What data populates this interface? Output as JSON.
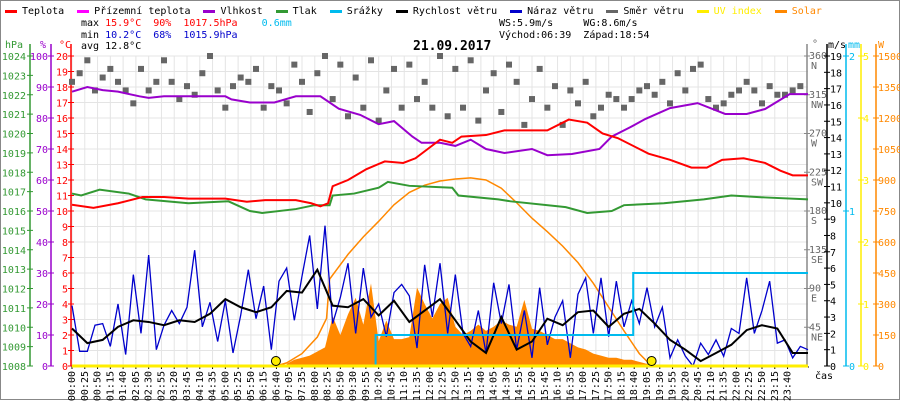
{
  "legend": [
    {
      "label": "Teplota",
      "color": "#ff0000"
    },
    {
      "label": "Přízemní teplota",
      "color": "#ff00ff"
    },
    {
      "label": "Vlhkost",
      "color": "#9900cc"
    },
    {
      "label": "Tlak",
      "color": "#339933"
    },
    {
      "label": "Srážky",
      "color": "#00bbee"
    },
    {
      "label": "Rychlost větru",
      "color": "#000000"
    },
    {
      "label": "Náraz větru",
      "color": "#0000cc"
    },
    {
      "label": "Směr větru",
      "color": "#666666"
    },
    {
      "label": "UV index",
      "color": "#ffee00"
    },
    {
      "label": "Solar",
      "color": "#ff8800"
    }
  ],
  "stats": {
    "max_label": "max",
    "max_temp": "15.9°C",
    "max_hum": "90%",
    "max_press": "1017.5hPa",
    "max_rain": "0.6mm",
    "min_label": "min",
    "min_temp": "10.2°C",
    "min_hum": "68%",
    "min_press": "1015.9hPa",
    "avg_label": "avg",
    "avg_temp": "12.8°C",
    "ws": "WS:5.9m/s",
    "wg": "WG:8.6m/s",
    "sunrise": "Východ:06:39",
    "sunset": "Západ:18:54"
  },
  "chart_data": {
    "type": "line",
    "title": "21.09.2017",
    "xlabel": "čas",
    "x_range_hours": [
      0,
      24
    ],
    "x_tick_labels": [
      "00:00",
      "00:25",
      "00:50",
      "01:15",
      "01:40",
      "02:05",
      "02:30",
      "02:55",
      "03:20",
      "03:45",
      "04:10",
      "04:35",
      "05:00",
      "05:25",
      "05:50",
      "06:15",
      "06:40",
      "07:05",
      "07:35",
      "08:00",
      "08:25",
      "08:50",
      "09:30",
      "09:55",
      "10:20",
      "10:45",
      "11:10",
      "11:35",
      "12:00",
      "12:25",
      "12:50",
      "13:15",
      "13:40",
      "14:05",
      "14:30",
      "14:55",
      "15:20",
      "15:45",
      "16:10",
      "16:35",
      "17:00",
      "17:25",
      "17:50",
      "18:15",
      "18:40",
      "19:05",
      "19:30",
      "19:55",
      "20:20",
      "20:45",
      "21:10",
      "21:35",
      "22:00",
      "22:25",
      "22:50",
      "23:15",
      "23:40"
    ],
    "axes": {
      "pressure": {
        "unit": "hPa",
        "range": [
          1008,
          1024
        ],
        "ticks": [
          "1008",
          "1009",
          "1010",
          "1011",
          "1012",
          "1013",
          "1014",
          "1015",
          "1016",
          "1017",
          "1018",
          "1019",
          "1020",
          "1021",
          "1022",
          "1023",
          "1024"
        ],
        "color": "#339933"
      },
      "humidity": {
        "unit": "%",
        "range": [
          0,
          100
        ],
        "ticks": [
          "0",
          "10",
          "20",
          "30",
          "40",
          "50",
          "60",
          "70",
          "80",
          "90",
          "100"
        ],
        "color": "#9900cc"
      },
      "temperature": {
        "unit": "°C",
        "range": [
          0,
          20
        ],
        "ticks": [
          "0",
          "1",
          "2",
          "3",
          "4",
          "5",
          "6",
          "7",
          "8",
          "9",
          "10",
          "11",
          "12",
          "13",
          "14",
          "15",
          "16",
          "17",
          "18",
          "19",
          "20"
        ],
        "color": "#ff0000"
      },
      "direction": {
        "unit": "°",
        "range": [
          0,
          360
        ],
        "ticks": [
          {
            "v": "45",
            "d": "NE"
          },
          {
            "v": "90",
            "d": "E"
          },
          {
            "v": "135",
            "d": "SE"
          },
          {
            "v": "180",
            "d": "S"
          },
          {
            "v": "225",
            "d": "SW"
          },
          {
            "v": "270",
            "d": "W"
          },
          {
            "v": "315",
            "d": "NW"
          },
          {
            "v": "360",
            "d": "N"
          }
        ],
        "color": "#666666"
      },
      "wind": {
        "unit": "m/s",
        "range": [
          0,
          19
        ],
        "ticks": [
          "0",
          "1",
          "2",
          "3",
          "4",
          "5",
          "6",
          "7",
          "8",
          "9",
          "10",
          "11",
          "12",
          "13",
          "14",
          "15",
          "16",
          "17",
          "18",
          "19"
        ],
        "color": "#000000"
      },
      "rain": {
        "unit": "mm",
        "range": [
          0,
          2
        ],
        "ticks": [
          "0",
          "1",
          "2"
        ],
        "color": "#00bbee"
      },
      "uv": {
        "unit": "",
        "range": [
          0,
          5
        ],
        "ticks": [
          "0",
          "1",
          "2",
          "3",
          "4",
          "5"
        ],
        "color": "#ffee00"
      },
      "solar": {
        "unit": "W",
        "range": [
          0,
          1500
        ],
        "ticks": [
          "0",
          "150",
          "300",
          "450",
          "600",
          "750",
          "900",
          "1050",
          "1200",
          "1350",
          "1500"
        ],
        "color": "#ff8800"
      }
    },
    "series": {
      "temperature": [
        [
          0,
          10.4
        ],
        [
          0.7,
          10.2
        ],
        [
          1.5,
          10.5
        ],
        [
          2.3,
          10.9
        ],
        [
          3,
          10.9
        ],
        [
          3.8,
          10.8
        ],
        [
          5,
          10.8
        ],
        [
          5.7,
          10.6
        ],
        [
          6.3,
          10.7
        ],
        [
          7.3,
          10.7
        ],
        [
          7.8,
          10.5
        ],
        [
          8.1,
          10.3
        ],
        [
          8.35,
          10.5
        ],
        [
          8.5,
          11.6
        ],
        [
          9,
          12
        ],
        [
          9.6,
          12.7
        ],
        [
          10.2,
          13.2
        ],
        [
          10.8,
          13.1
        ],
        [
          11.2,
          13.4
        ],
        [
          11.6,
          14.0
        ],
        [
          12,
          14.6
        ],
        [
          12.4,
          14.4
        ],
        [
          12.7,
          14.8
        ],
        [
          13.5,
          14.9
        ],
        [
          14.1,
          15.2
        ],
        [
          15.5,
          15.2
        ],
        [
          16.2,
          15.9
        ],
        [
          16.8,
          15.7
        ],
        [
          17.3,
          15.0
        ],
        [
          17.8,
          14.7
        ],
        [
          18.8,
          13.7
        ],
        [
          19.5,
          13.3
        ],
        [
          20.2,
          12.8
        ],
        [
          20.7,
          12.8
        ],
        [
          21.2,
          13.3
        ],
        [
          21.9,
          13.4
        ],
        [
          22.6,
          13.1
        ],
        [
          23.1,
          12.6
        ],
        [
          23.5,
          12.3
        ],
        [
          24,
          12.3
        ]
      ],
      "humidity": [
        [
          0,
          88.5
        ],
        [
          0.5,
          90
        ],
        [
          1,
          89
        ],
        [
          1.5,
          88.5
        ],
        [
          2.2,
          87
        ],
        [
          2.5,
          86.5
        ],
        [
          3,
          87
        ],
        [
          5,
          87
        ],
        [
          5.2,
          86
        ],
        [
          5.8,
          85
        ],
        [
          6.6,
          85
        ],
        [
          7.3,
          87
        ],
        [
          8.1,
          87
        ],
        [
          8.7,
          83
        ],
        [
          9.4,
          81
        ],
        [
          10,
          78
        ],
        [
          10.5,
          79
        ],
        [
          11.1,
          74
        ],
        [
          11.4,
          72
        ],
        [
          12,
          72
        ],
        [
          12.5,
          71
        ],
        [
          13,
          73
        ],
        [
          13.5,
          70
        ],
        [
          14.1,
          68.7
        ],
        [
          15,
          70
        ],
        [
          15.5,
          68
        ],
        [
          16.3,
          68.4
        ],
        [
          17.2,
          70
        ],
        [
          17.6,
          74
        ],
        [
          18.2,
          77
        ],
        [
          18.7,
          79.7
        ],
        [
          19.5,
          83.2
        ],
        [
          20.4,
          84.8
        ],
        [
          21.3,
          81.3
        ],
        [
          22,
          81.3
        ],
        [
          22.6,
          82.9
        ],
        [
          23.4,
          87.7
        ],
        [
          24,
          87.7
        ]
      ],
      "pressure": [
        [
          0,
          1016.9
        ],
        [
          0.3,
          1016.8
        ],
        [
          0.9,
          1017.1
        ],
        [
          1.85,
          1016.9
        ],
        [
          2.4,
          1016.6
        ],
        [
          3.8,
          1016.4
        ],
        [
          5.1,
          1016.5
        ],
        [
          5.8,
          1016.0
        ],
        [
          6.2,
          1015.9
        ],
        [
          7.3,
          1016.1
        ],
        [
          7.9,
          1016.3
        ],
        [
          8.4,
          1016.3
        ],
        [
          8.5,
          1016.8
        ],
        [
          9.2,
          1016.9
        ],
        [
          10,
          1017.2
        ],
        [
          10.3,
          1017.5
        ],
        [
          11,
          1017.3
        ],
        [
          12.4,
          1017.2
        ],
        [
          12.6,
          1016.8
        ],
        [
          13.9,
          1016.6
        ],
        [
          14.3,
          1016.5
        ],
        [
          16.1,
          1016.2
        ],
        [
          16.8,
          1015.9
        ],
        [
          17.6,
          1016.0
        ],
        [
          18,
          1016.3
        ],
        [
          19.3,
          1016.4
        ],
        [
          20.6,
          1016.6
        ],
        [
          21.5,
          1016.8
        ],
        [
          22.6,
          1016.7
        ],
        [
          24,
          1016.6
        ]
      ],
      "rain": [
        [
          0,
          0
        ],
        [
          9.9,
          0
        ],
        [
          9.9,
          0.2
        ],
        [
          18.3,
          0.2
        ],
        [
          18.3,
          0.6
        ],
        [
          24,
          0.6
        ]
      ],
      "uv": [
        [
          0,
          0
        ],
        [
          24,
          0
        ]
      ],
      "wind_speed_step_h": 0.5,
      "wind_speed": [
        2.3,
        1.4,
        1.6,
        2.4,
        2.8,
        2.7,
        2.5,
        2.8,
        2.7,
        3.2,
        4.1,
        3.6,
        3.3,
        3.6,
        4.6,
        4.5,
        5.9,
        3.7,
        3.6,
        4.1,
        3.1,
        4.0,
        2.7,
        3.4,
        4.1,
        2.8,
        1.5,
        0.8,
        3.0,
        1.0,
        1.5,
        2.9,
        2.5,
        3.3,
        3.4,
        2.4,
        3.2,
        3.5,
        2.6,
        1.6,
        1.0,
        0.3,
        0.8,
        1.3,
        2.2,
        2.5,
        2.3,
        0.8,
        0.8
      ],
      "wind_gust_step_h": 0.25,
      "wind_gust": [
        3.7,
        0.9,
        0.9,
        2.5,
        2.6,
        1.2,
        3.8,
        0.7,
        5.6,
        2.0,
        6.8,
        1.0,
        2.5,
        3.4,
        2.6,
        3.6,
        7.1,
        2.4,
        3.9,
        1.5,
        4.0,
        0.8,
        3.1,
        5.9,
        2.9,
        4.9,
        1.0,
        5.2,
        6.0,
        2.8,
        5.5,
        8.0,
        3.5,
        8.6,
        2.6,
        4.2,
        6.3,
        2.0,
        6.0,
        3.0,
        3.8,
        1.8,
        4.5,
        5.0,
        4.3,
        1.1,
        6.2,
        3.0,
        6.3,
        2.0,
        5.6,
        2.0,
        1.2,
        3.4,
        0.8,
        5.1,
        2.6,
        5.0,
        1.0,
        3.4,
        0.5,
        4.8,
        1.3,
        3.0,
        4.0,
        0.5,
        4.4,
        5.4,
        2.0,
        5.4,
        1.8,
        5.2,
        2.4,
        4.0,
        2.6,
        4.8,
        2.4,
        3.6,
        0.5,
        1.6,
        0.6,
        0.0,
        1.4,
        0.7,
        1.6,
        0.6,
        2.3,
        2.0,
        5.4,
        2.0,
        3.4,
        5.2,
        1.4,
        1.6,
        0.5,
        1.2,
        1.0
      ],
      "wind_direction_step_h": 0.25,
      "wind_direction": [
        330,
        340,
        355,
        320,
        335,
        345,
        330,
        320,
        305,
        345,
        320,
        330,
        355,
        330,
        310,
        325,
        315,
        340,
        360,
        320,
        300,
        325,
        335,
        330,
        345,
        300,
        325,
        320,
        305,
        350,
        330,
        295,
        340,
        360,
        310,
        350,
        290,
        335,
        300,
        355,
        285,
        320,
        345,
        300,
        350,
        310,
        330,
        300,
        360,
        290,
        345,
        300,
        355,
        285,
        320,
        340,
        295,
        350,
        330,
        280,
        310,
        345,
        300,
        325,
        280,
        320,
        305,
        330,
        290,
        300,
        315,
        310,
        300,
        310,
        320,
        325,
        315,
        330,
        305,
        340,
        320,
        345,
        350,
        310,
        300,
        305,
        315,
        320,
        330,
        320,
        305,
        325,
        315,
        315,
        320,
        325
      ],
      "solar_theoretical": [
        [
          6.65,
          0
        ],
        [
          7,
          15
        ],
        [
          7.5,
          60
        ],
        [
          8,
          140
        ],
        [
          8.3,
          230
        ],
        [
          8.4,
          420
        ],
        [
          9,
          540
        ],
        [
          9.5,
          625
        ],
        [
          10,
          700
        ],
        [
          10.5,
          780
        ],
        [
          11,
          840
        ],
        [
          11.5,
          875
        ],
        [
          12,
          895
        ],
        [
          12.5,
          905
        ],
        [
          13,
          910
        ],
        [
          13.5,
          900
        ],
        [
          14,
          860
        ],
        [
          14.5,
          790
        ],
        [
          15,
          715
        ],
        [
          15.5,
          650
        ],
        [
          16,
          580
        ],
        [
          16.5,
          500
        ],
        [
          17,
          400
        ],
        [
          17.5,
          285
        ],
        [
          18,
          170
        ],
        [
          18.5,
          60
        ],
        [
          18.9,
          0
        ]
      ],
      "solar_start_h": 7,
      "solar_step_h": 0.25,
      "solar_actual": [
        10,
        30,
        40,
        50,
        70,
        90,
        240,
        150,
        250,
        330,
        200,
        400,
        120,
        220,
        130,
        130,
        140,
        380,
        300,
        230,
        300,
        330,
        190,
        150,
        170,
        200,
        170,
        190,
        220,
        200,
        190,
        320,
        180,
        170,
        150,
        130,
        130,
        110,
        90,
        80,
        60,
        50,
        40,
        40,
        30,
        30,
        20,
        10,
        5
      ],
      "sun_markers_h": [
        6.65,
        18.9
      ]
    }
  }
}
